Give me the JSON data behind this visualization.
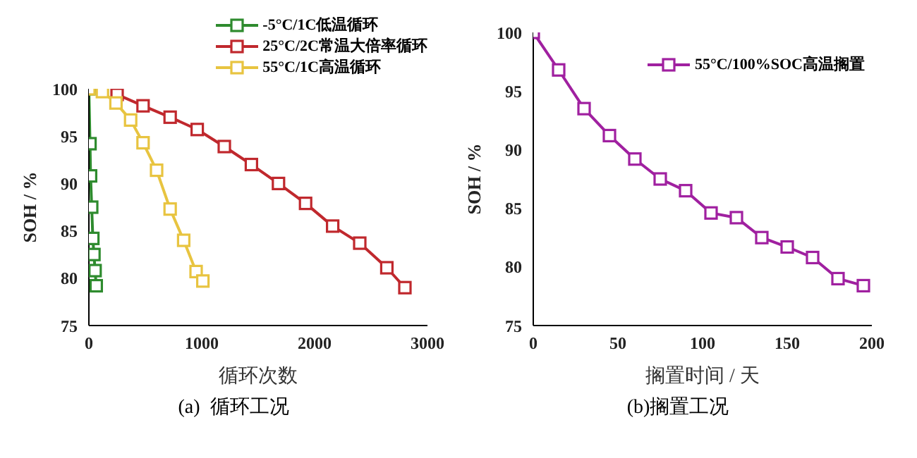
{
  "chart_data": [
    {
      "type": "line",
      "xlabel": "循环次数",
      "ylabel": "SOH / %",
      "xlim": [
        0,
        3000
      ],
      "xticks": [
        0,
        1000,
        2000,
        3000
      ],
      "ylim": [
        75,
        100
      ],
      "yticks": [
        75,
        80,
        85,
        90,
        95,
        100
      ],
      "grid": false,
      "legend": "top right",
      "marker": "square",
      "line_style": "solid",
      "annotations": [
        "(a)  循环工况"
      ],
      "series": [
        {
          "name": "-5°C/1C低温循环",
          "color": "#2e8b2e",
          "x": [
            0,
            10,
            15,
            25,
            35,
            45,
            55,
            65
          ],
          "values": [
            100,
            94.2,
            90.8,
            87.5,
            84.2,
            82.5,
            80.8,
            79.2
          ]
        },
        {
          "name": "25°C/2C常温大倍率循环",
          "color": "#c0282d",
          "x": [
            250,
            480,
            720,
            960,
            1200,
            1440,
            1680,
            1920,
            2160,
            2400,
            2640,
            2800
          ],
          "values": [
            99.4,
            98.2,
            97.0,
            95.7,
            93.9,
            92.0,
            90.0,
            87.9,
            85.5,
            83.7,
            81.1,
            79.0
          ]
        },
        {
          "name": "55°C/1C高温循环",
          "color": "#e8c440",
          "x": [
            0,
            120,
            240,
            370,
            480,
            600,
            720,
            840,
            950,
            1010
          ],
          "values": [
            100,
            99.7,
            98.5,
            96.7,
            94.3,
            91.4,
            87.3,
            84.0,
            80.7,
            79.7
          ]
        }
      ]
    },
    {
      "type": "line",
      "xlabel": "搁置时间 / 天",
      "ylabel": "SOH / %",
      "xlim": [
        0,
        200
      ],
      "xticks": [
        0,
        50,
        100,
        150,
        200
      ],
      "ylim": [
        75,
        100
      ],
      "yticks": [
        75,
        80,
        85,
        90,
        95,
        100
      ],
      "grid": false,
      "legend": "top right",
      "marker": "square",
      "line_style": "solid",
      "annotations": [
        "(b)搁置工况"
      ],
      "series": [
        {
          "name": "55°C/100%SOC高温搁置",
          "color": "#a020a0",
          "x": [
            0,
            15,
            30,
            45,
            60,
            75,
            90,
            105,
            120,
            135,
            150,
            165,
            180,
            195
          ],
          "values": [
            100,
            96.8,
            93.5,
            91.2,
            89.2,
            87.5,
            86.5,
            84.6,
            84.2,
            82.5,
            81.7,
            80.8,
            79.0,
            78.4
          ]
        }
      ]
    }
  ]
}
